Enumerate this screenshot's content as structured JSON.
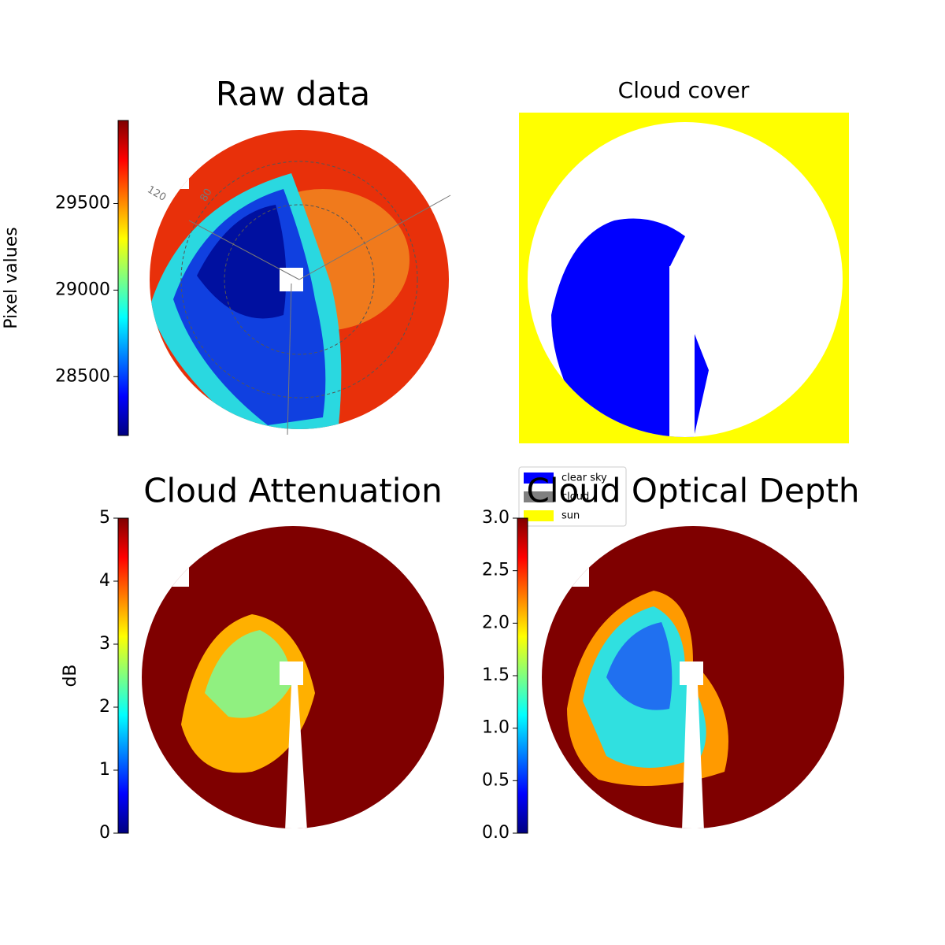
{
  "chart_data": [
    {
      "type": "image",
      "title": "Raw data",
      "colorbar_label": "Pixel values",
      "colormap": "jet",
      "ylim": [
        28160,
        29980
      ],
      "yticks": [
        28500,
        29000,
        29500
      ],
      "annotations": [
        "120",
        "80"
      ]
    },
    {
      "type": "image",
      "title": "Cloud cover",
      "legend_loc": "lower left",
      "categories": [
        "clear sky",
        "cloud",
        "sun"
      ],
      "colors": [
        "#0000ff",
        "#808080",
        "#ffff00"
      ]
    },
    {
      "type": "image",
      "title": "Cloud Attenuation",
      "colorbar_label": "dB",
      "colormap": "jet",
      "ylim": [
        0,
        5
      ],
      "yticks": [
        0,
        1,
        2,
        3,
        4,
        5
      ]
    },
    {
      "type": "image",
      "title": "Cloud Optical Depth",
      "colormap": "jet",
      "ylim": [
        0,
        3
      ],
      "yticks": [
        {
          "value": 0,
          "label": "0.0"
        },
        {
          "value": 0.5,
          "label": "0.5"
        },
        {
          "value": 1,
          "label": "1.0"
        },
        {
          "value": 1.5,
          "label": "1.5"
        },
        {
          "value": 2,
          "label": "2.0"
        },
        {
          "value": 2.5,
          "label": "2.5"
        },
        {
          "value": 3,
          "label": "3.0"
        }
      ]
    }
  ]
}
